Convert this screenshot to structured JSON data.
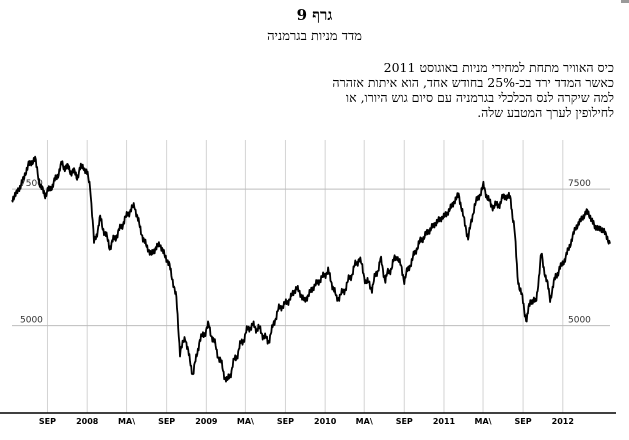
{
  "header": {
    "title": "גרף 9",
    "subtitle": "מדד מניות בגרמניה"
  },
  "caption": {
    "lines": [
      "כיס האוויר מתחת למחירי מניות באוגוסט 2011",
      "כאשר המדד ירד בכ-25% בחודש אחד, הוא איתות אזהרה",
      "למה שיקרה לנס הכלכלי בגרמניה עם סיום גוש היורו, או",
      "לחילופין לערך המטבע שלה."
    ]
  },
  "chart_data": {
    "type": "line",
    "title": "",
    "xlabel": "",
    "ylabel": "",
    "x_range": [
      "2007-05-15",
      "2012-05-25"
    ],
    "ylim": [
      3400,
      8400
    ],
    "y_ticks": [
      5000,
      7500
    ],
    "y_tick_labels_left": [
      "5000",
      "7500"
    ],
    "y_tick_labels_right": [
      "5000",
      "7500"
    ],
    "x_tick_labels": [
      {
        "date": "2007-09-01",
        "label": "SEP"
      },
      {
        "date": "2008-01-01",
        "label": "2008"
      },
      {
        "date": "2008-05-01",
        "label": "MA\\"
      },
      {
        "date": "2008-09-01",
        "label": "SEP"
      },
      {
        "date": "2009-01-01",
        "label": "2009"
      },
      {
        "date": "2009-05-01",
        "label": "MA\\"
      },
      {
        "date": "2009-09-01",
        "label": "SEP"
      },
      {
        "date": "2010-01-01",
        "label": "2010"
      },
      {
        "date": "2010-05-01",
        "label": "MA\\"
      },
      {
        "date": "2010-09-01",
        "label": "SEP"
      },
      {
        "date": "2011-01-01",
        "label": "2011"
      },
      {
        "date": "2011-05-01",
        "label": "MA\\"
      },
      {
        "date": "2011-09-01",
        "label": "SEP"
      },
      {
        "date": "2012-01-01",
        "label": "2012"
      }
    ],
    "grid": true,
    "series": [
      {
        "name": "",
        "color": "#000000",
        "points": [
          [
            "2007-05-15",
            7300
          ],
          [
            "2007-06-10",
            7550
          ],
          [
            "2007-07-05",
            7950
          ],
          [
            "2007-07-25",
            8050
          ],
          [
            "2007-08-10",
            7550
          ],
          [
            "2007-08-25",
            7400
          ],
          [
            "2007-09-20",
            7600
          ],
          [
            "2007-10-15",
            7950
          ],
          [
            "2007-11-10",
            7850
          ],
          [
            "2007-12-01",
            7750
          ],
          [
            "2007-12-20",
            7950
          ],
          [
            "2008-01-10",
            7600
          ],
          [
            "2008-01-22",
            6500
          ],
          [
            "2008-02-10",
            6950
          ],
          [
            "2008-03-10",
            6450
          ],
          [
            "2008-04-05",
            6700
          ],
          [
            "2008-05-05",
            7050
          ],
          [
            "2008-05-25",
            7200
          ],
          [
            "2008-06-20",
            6600
          ],
          [
            "2008-07-15",
            6300
          ],
          [
            "2008-08-10",
            6500
          ],
          [
            "2008-09-10",
            6100
          ],
          [
            "2008-10-01",
            5500
          ],
          [
            "2008-10-12",
            4500
          ],
          [
            "2008-10-28",
            4800
          ],
          [
            "2008-11-10",
            4400
          ],
          [
            "2008-11-21",
            4100
          ],
          [
            "2008-12-10",
            4700
          ],
          [
            "2009-01-08",
            5000
          ],
          [
            "2009-02-10",
            4400
          ],
          [
            "2009-03-06",
            3950
          ],
          [
            "2009-03-25",
            4300
          ],
          [
            "2009-04-20",
            4700
          ],
          [
            "2009-05-15",
            5000
          ],
          [
            "2009-06-10",
            4950
          ],
          [
            "2009-07-10",
            4700
          ],
          [
            "2009-08-10",
            5300
          ],
          [
            "2009-09-10",
            5450
          ],
          [
            "2009-10-05",
            5700
          ],
          [
            "2009-10-30",
            5450
          ],
          [
            "2009-11-25",
            5700
          ],
          [
            "2010-01-10",
            6000
          ],
          [
            "2010-02-05",
            5500
          ],
          [
            "2010-02-25",
            5600
          ],
          [
            "2010-04-15",
            6250
          ],
          [
            "2010-05-07",
            5800
          ],
          [
            "2010-05-25",
            5700
          ],
          [
            "2010-06-20",
            6200
          ],
          [
            "2010-07-05",
            5850
          ],
          [
            "2010-08-10",
            6300
          ],
          [
            "2010-09-01",
            5850
          ],
          [
            "2010-10-15",
            6500
          ],
          [
            "2010-11-10",
            6700
          ],
          [
            "2010-12-10",
            6900
          ],
          [
            "2011-01-10",
            7050
          ],
          [
            "2011-02-15",
            7400
          ],
          [
            "2011-03-16",
            6600
          ],
          [
            "2011-04-05",
            7200
          ],
          [
            "2011-05-02",
            7550
          ],
          [
            "2011-05-25",
            7200
          ],
          [
            "2011-06-15",
            7200
          ],
          [
            "2011-07-10",
            7400
          ],
          [
            "2011-07-25",
            7300
          ],
          [
            "2011-08-05",
            6800
          ],
          [
            "2011-08-15",
            5900
          ],
          [
            "2011-09-12",
            5100
          ],
          [
            "2011-09-25",
            5500
          ],
          [
            "2011-10-10",
            5400
          ],
          [
            "2011-10-27",
            6300
          ],
          [
            "2011-11-23",
            5500
          ],
          [
            "2011-12-10",
            5900
          ],
          [
            "2012-01-10",
            6250
          ],
          [
            "2012-02-10",
            6800
          ],
          [
            "2012-03-16",
            7100
          ],
          [
            "2012-04-10",
            6800
          ],
          [
            "2012-05-05",
            6750
          ],
          [
            "2012-05-25",
            6500
          ]
        ]
      }
    ]
  }
}
